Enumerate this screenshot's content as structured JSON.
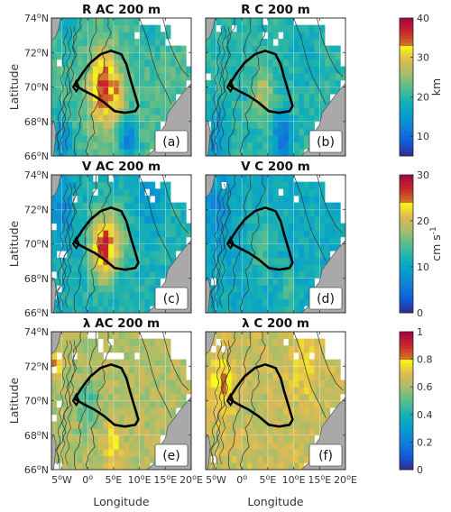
{
  "figure": {
    "panels": [
      {
        "title": "R AC 200 m",
        "label": "(a)",
        "variable": "R"
      },
      {
        "title": "R C 200 m",
        "label": "(b)",
        "variable": "R"
      },
      {
        "title": "V AC 200 m",
        "label": "(c)",
        "variable": "V"
      },
      {
        "title": "V C 200 m",
        "label": "(d)",
        "variable": "V"
      },
      {
        "title": "λ AC 200 m",
        "label": "(e)",
        "variable": "λ"
      },
      {
        "title": "λ C 200 m",
        "label": "(f)",
        "variable": "λ"
      }
    ],
    "colorbars": [
      {
        "variable": "R",
        "unit": "km",
        "range": [
          5,
          40
        ],
        "ticks": [
          "10",
          "20",
          "30",
          "40"
        ],
        "tick_values": [
          10,
          20,
          30,
          40
        ]
      },
      {
        "variable": "V",
        "unit": "cm s-1",
        "unit_main": "cm s",
        "unit_sup": "-1",
        "range": [
          0,
          30
        ],
        "ticks": [
          "0",
          "10",
          "20",
          "30"
        ],
        "tick_values": [
          0,
          10,
          20,
          30
        ]
      },
      {
        "variable": "λ",
        "unit": "",
        "range": [
          0,
          1
        ],
        "ticks": [
          "0",
          "0.2",
          "0.4",
          "0.6",
          "0.8",
          "1"
        ],
        "tick_values": [
          0,
          0.2,
          0.4,
          0.6,
          0.8,
          1
        ]
      }
    ],
    "axes": {
      "xlabel": "Longitude",
      "ylabel": "Latitude",
      "x_ticks": [
        {
          "value": -5,
          "num": "5",
          "sup": "o",
          "hem": "W"
        },
        {
          "value": 0,
          "num": "0",
          "sup": "o",
          "hem": ""
        },
        {
          "value": 5,
          "num": "5",
          "sup": "o",
          "hem": "E"
        },
        {
          "value": 10,
          "num": "10",
          "sup": "o",
          "hem": "E"
        },
        {
          "value": 15,
          "num": "15",
          "sup": "o",
          "hem": "E"
        },
        {
          "value": 20,
          "num": "20",
          "sup": "o",
          "hem": "E"
        }
      ],
      "y_ticks": [
        {
          "value": 74,
          "num": "74",
          "sup": "o",
          "hem": "N"
        },
        {
          "value": 72,
          "num": "72",
          "sup": "o",
          "hem": "N"
        },
        {
          "value": 70,
          "num": "70",
          "sup": "o",
          "hem": "N"
        },
        {
          "value": 68,
          "num": "68",
          "sup": "o",
          "hem": "N"
        },
        {
          "value": 66,
          "num": "66",
          "sup": "o",
          "hem": "N"
        }
      ]
    },
    "colors": {
      "land": "#a9a9a9",
      "outline": "#000000",
      "bathymetry": "#333333"
    }
  },
  "chart_data": [
    {
      "type": "heatmap",
      "title": "R AC 200 m",
      "label": "(a)",
      "unit": "km",
      "xlim": [
        -7,
        20
      ],
      "ylim": [
        66,
        74
      ],
      "grid": true,
      "legend": "right",
      "background": 22,
      "anomalies": [
        {
          "lon": 3,
          "lat": 70,
          "value": 36,
          "spread": 2.5
        },
        {
          "lon": 6,
          "lat": 69.4,
          "value": 27,
          "spread": 1.6
        },
        {
          "lon": 8,
          "lat": 67,
          "value": 12,
          "spread": 1.6
        },
        {
          "lon": -5,
          "lat": 66.8,
          "value": 14,
          "spread": 2
        },
        {
          "lon": -4,
          "lat": 73.5,
          "value": 18,
          "spread": 2
        },
        {
          "lon": 12,
          "lat": 73,
          "value": 19,
          "spread": 2
        }
      ]
    },
    {
      "type": "heatmap",
      "title": "R C 200 m",
      "label": "(b)",
      "unit": "km",
      "xlim": [
        -7,
        20
      ],
      "ylim": [
        66,
        74
      ],
      "grid": true,
      "legend": "right",
      "background": 20,
      "anomalies": [
        {
          "lon": 4,
          "lat": 69.8,
          "value": 27,
          "spread": 1.8
        },
        {
          "lon": 8,
          "lat": 67,
          "value": 11,
          "spread": 1.8
        },
        {
          "lon": -5,
          "lat": 67,
          "value": 14,
          "spread": 2
        },
        {
          "lon": 12,
          "lat": 72,
          "value": 17,
          "spread": 2.2
        }
      ]
    },
    {
      "type": "heatmap",
      "title": "V AC 200 m",
      "label": "(c)",
      "unit": "cm s-1",
      "xlim": [
        -7,
        20
      ],
      "ylim": [
        66,
        74
      ],
      "grid": true,
      "legend": "right",
      "background": 12,
      "anomalies": [
        {
          "lon": 3,
          "lat": 69.8,
          "value": 27,
          "spread": 2.2
        },
        {
          "lon": 6,
          "lat": 70.5,
          "value": 18,
          "spread": 1.8
        },
        {
          "lon": -5,
          "lat": 72,
          "value": 8,
          "spread": 2.5
        },
        {
          "lon": 12,
          "lat": 72.5,
          "value": 9,
          "spread": 2.5
        }
      ]
    },
    {
      "type": "heatmap",
      "title": "V C 200 m",
      "label": "(d)",
      "unit": "cm s-1",
      "xlim": [
        -7,
        20
      ],
      "ylim": [
        66,
        74
      ],
      "grid": true,
      "legend": "right",
      "background": 11,
      "anomalies": [
        {
          "lon": 4,
          "lat": 69.8,
          "value": 15,
          "spread": 2
        },
        {
          "lon": -5,
          "lat": 72,
          "value": 8,
          "spread": 2.5
        },
        {
          "lon": 9,
          "lat": 67.5,
          "value": 14,
          "spread": 1.5
        }
      ]
    },
    {
      "type": "heatmap",
      "title": "λ AC 200 m",
      "label": "(e)",
      "unit": "",
      "xlim": [
        -7,
        20
      ],
      "ylim": [
        66,
        74
      ],
      "grid": true,
      "legend": "right",
      "background": 0.62,
      "anomalies": [
        {
          "lon": 0,
          "lat": 69.8,
          "value": 0.45,
          "spread": 1.8
        },
        {
          "lon": -6,
          "lat": 72.3,
          "value": 0.85,
          "spread": 0.8
        },
        {
          "lon": 5,
          "lat": 67.5,
          "value": 0.78,
          "spread": 1.5
        }
      ]
    },
    {
      "type": "heatmap",
      "title": "λ C 200 m",
      "label": "(f)",
      "unit": "",
      "xlim": [
        -7,
        20
      ],
      "ylim": [
        66,
        74
      ],
      "grid": true,
      "legend": "right",
      "background": 0.66,
      "anomalies": [
        {
          "lon": -4,
          "lat": 71,
          "value": 0.8,
          "spread": 2
        },
        {
          "lon": 3,
          "lat": 70,
          "value": 0.6,
          "spread": 1.5
        },
        {
          "lon": 12,
          "lat": 72,
          "value": 0.76,
          "spread": 2
        }
      ]
    }
  ]
}
